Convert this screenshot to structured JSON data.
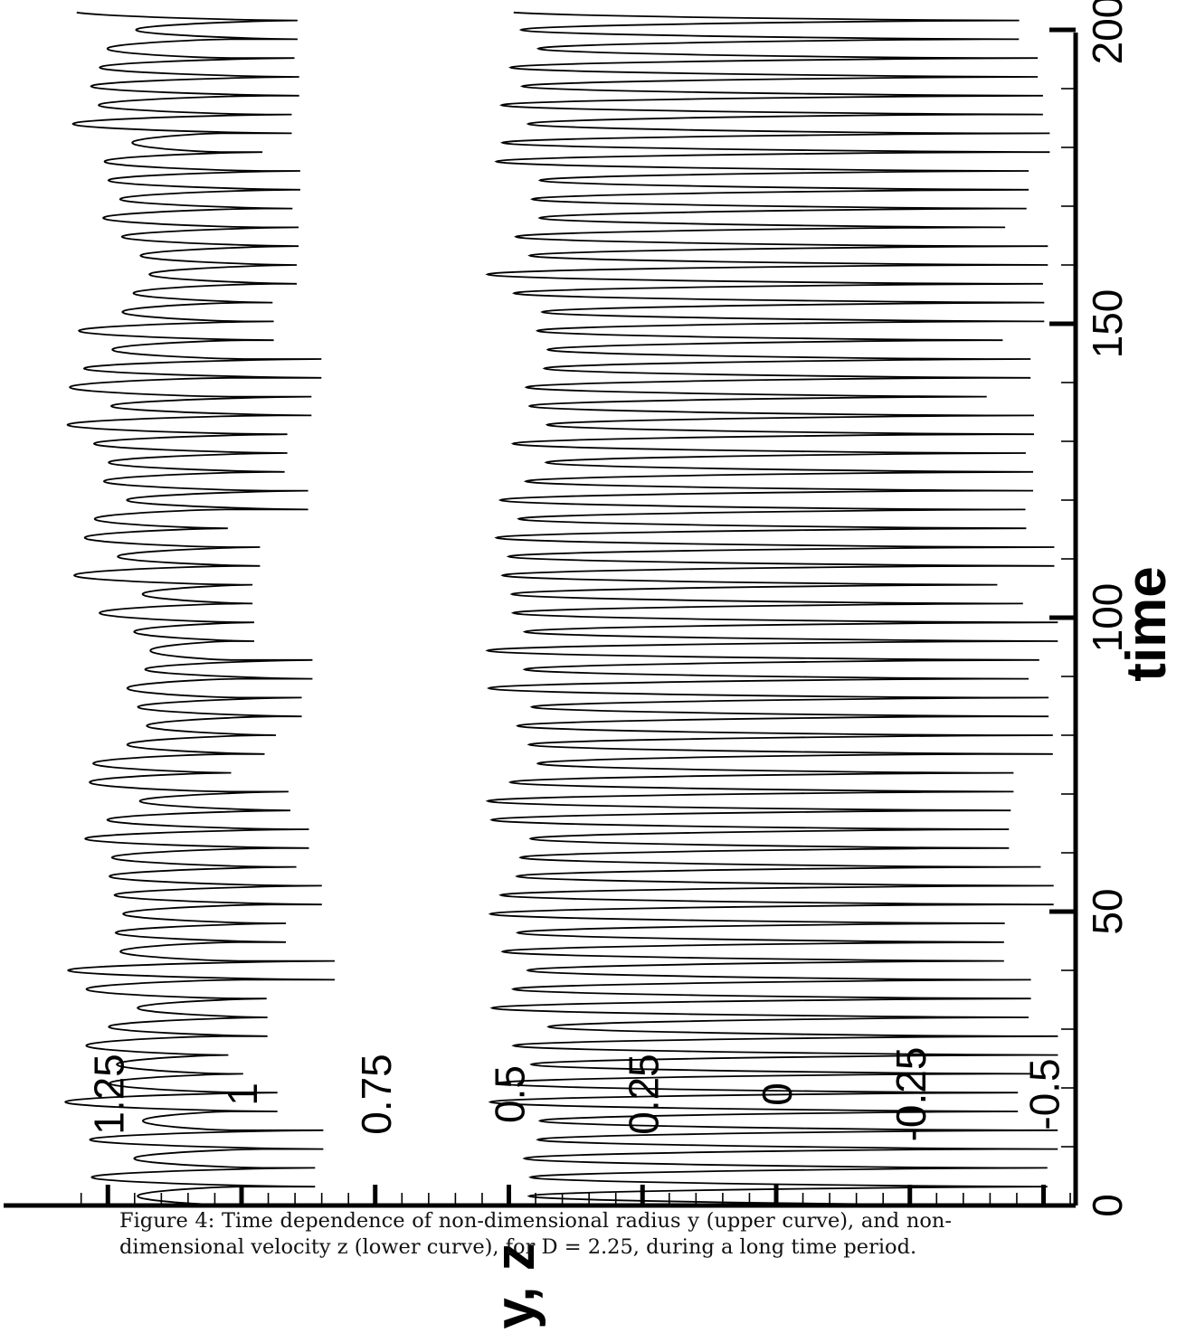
{
  "caption": {
    "label": "Figure 4:",
    "text": "Time dependence of non-dimensional radius y (upper curve), and non-dimensional velocity z (lower curve), for D = 2.25, during a long time period."
  },
  "chart_data": {
    "type": "line",
    "orientation": "rotated-90",
    "xlabel": "time",
    "ylabel": "y, z",
    "xlim": [
      0,
      200
    ],
    "ylim": [
      -0.55,
      1.33
    ],
    "x_ticks": [
      "0",
      "50",
      "100",
      "150",
      "200"
    ],
    "y_ticks": [
      "1.25",
      "1",
      "0.75",
      "0.5",
      "0.25",
      "0",
      "-0.25",
      "-0.5"
    ],
    "y_tick_values": [
      1.25,
      1,
      0.75,
      0.5,
      0.25,
      0,
      -0.25,
      -0.5
    ],
    "series": [
      {
        "description": "upper curve",
        "period": 3.2,
        "min_range": [
          0.82,
          1.04
        ],
        "max_range": [
          1.17,
          1.33
        ],
        "x_end": 203
      },
      {
        "description": "lower curve",
        "period": 3.2,
        "min_range": [
          -0.53,
          -0.38
        ],
        "max_range": [
          0.42,
          0.54
        ],
        "x_end": 203
      }
    ]
  }
}
